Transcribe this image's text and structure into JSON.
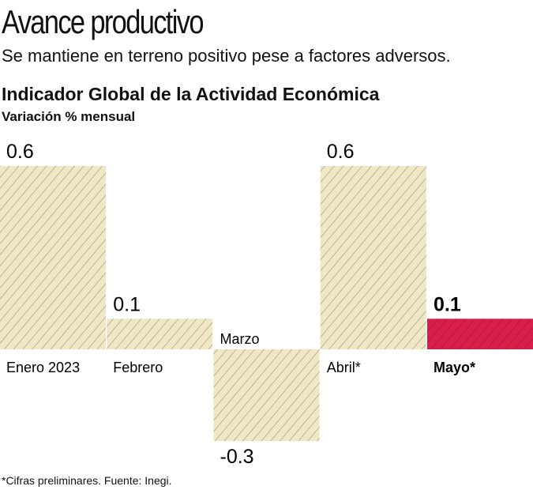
{
  "title": "Avance productivo",
  "subtitle": "Se mantiene en terreno positivo pese a factores adversos.",
  "footnote": "*Cifras preliminares. Fuente: Inegi.",
  "chart_data": {
    "type": "bar",
    "title": "Indicador Global de la Actividad Económica",
    "ylabel": "Variación % mensual",
    "categories": [
      "Enero 2023",
      "Febrero",
      "Marzo",
      "Abril*",
      "Mayo*"
    ],
    "values": [
      0.6,
      0.1,
      -0.3,
      0.6,
      0.1
    ],
    "value_labels": [
      "0.6",
      "0.1",
      "-0.3",
      "0.6",
      "0.1"
    ],
    "highlight_index": 4,
    "colors": {
      "bar": "#efe7c6",
      "hatch": "#8c8468",
      "highlight": "#d81f4a",
      "highlight_hatch": "#9c1030"
    },
    "grid": false
  }
}
